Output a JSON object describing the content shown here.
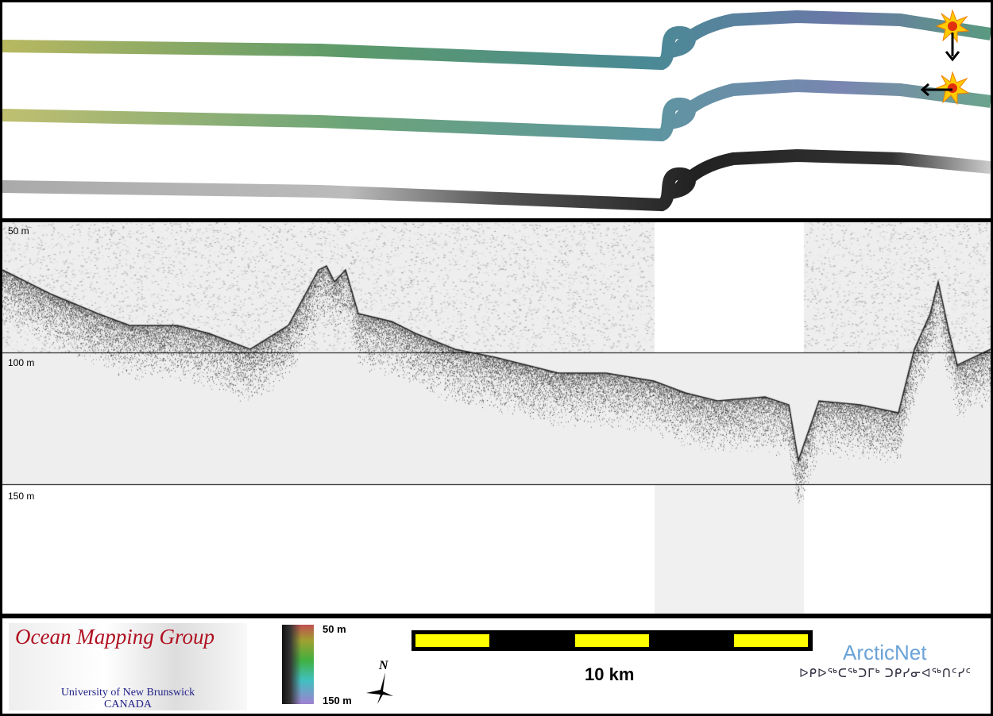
{
  "map": {
    "tracks": [
      "colour-coded bathymetry swath",
      "sun-illuminated bathymetry swath",
      "backscatter swath"
    ],
    "markers": [
      "start-burst-icon",
      "turn-burst-icon"
    ]
  },
  "profile": {
    "depth_labels": [
      "50 m",
      "100 m",
      "150 m"
    ]
  },
  "legend": {
    "logo_title": "Ocean Mapping Group",
    "logo_university": "University of New Brunswick",
    "logo_country": "CANADA",
    "colorbar_top": "50 m",
    "colorbar_bottom": "150 m",
    "north_label": "N",
    "scale_label": "10 km",
    "partner_name": "ArcticNet",
    "partner_subtitle": "ᐅᑭᐅᖅᑕᖅᑐᒥᒃ ᑐᑭᓯᓂᐊᖅᑎᑦᓯᑦ",
    "scalebar_colors": [
      "#000000",
      "#ffff00"
    ]
  }
}
